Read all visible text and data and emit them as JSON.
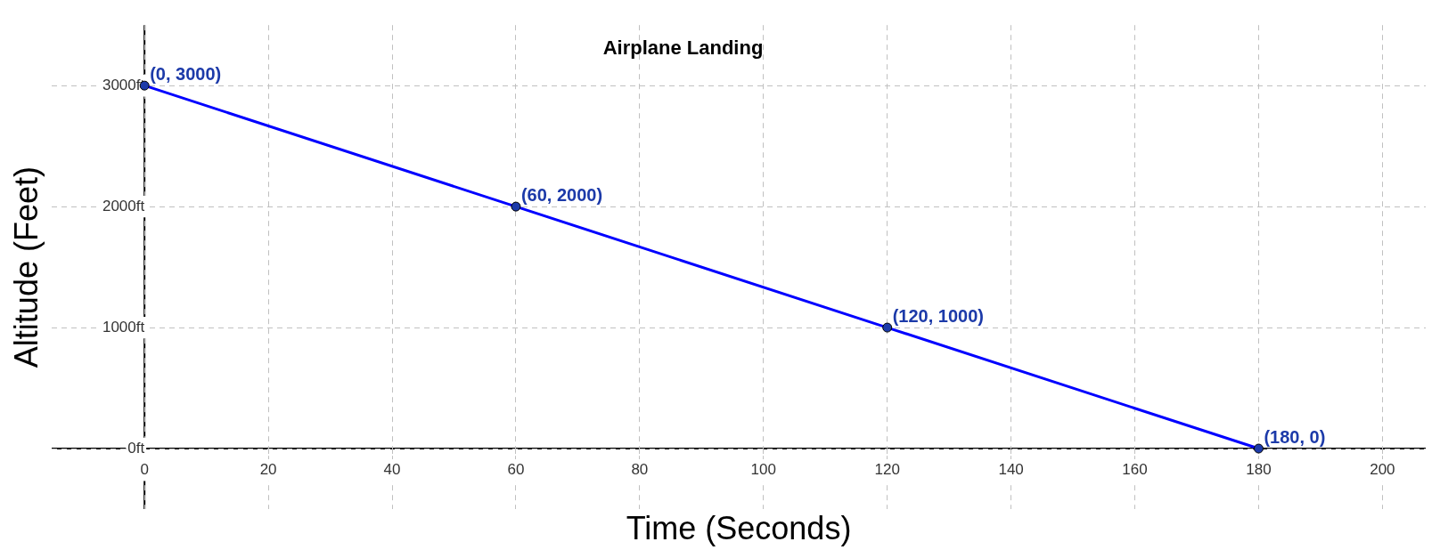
{
  "chart_data": {
    "type": "line",
    "title": "Airplane Landing",
    "xlabel": "Time (Seconds)",
    "ylabel": "Altitude (Feet)",
    "x": [
      0,
      60,
      120,
      180
    ],
    "series": [
      {
        "color": "#0000ff",
        "values": [
          3000,
          2000,
          1000,
          0
        ]
      }
    ],
    "xlim": [
      -15,
      207
    ],
    "xticks": [
      0,
      20,
      40,
      60,
      80,
      100,
      120,
      140,
      160,
      180,
      200
    ],
    "ylim": [
      -500,
      3500
    ],
    "yticks": [
      {
        "value": 0,
        "label": "0ft"
      },
      {
        "value": 1000,
        "label": "1000ft"
      },
      {
        "value": 2000,
        "label": "2000ft"
      },
      {
        "value": 3000,
        "label": "3000ft"
      }
    ],
    "annotations": [
      {
        "text": "(0, 3000)",
        "x": 0,
        "y": 3000
      },
      {
        "text": "(60, 2000)",
        "x": 60,
        "y": 2000
      },
      {
        "text": "(120, 1000)",
        "x": 120,
        "y": 1000
      },
      {
        "text": "(180, 0)",
        "x": 180,
        "y": 0
      }
    ],
    "grid": true,
    "marker": "circle",
    "line_style": "solid",
    "legend": false
  }
}
